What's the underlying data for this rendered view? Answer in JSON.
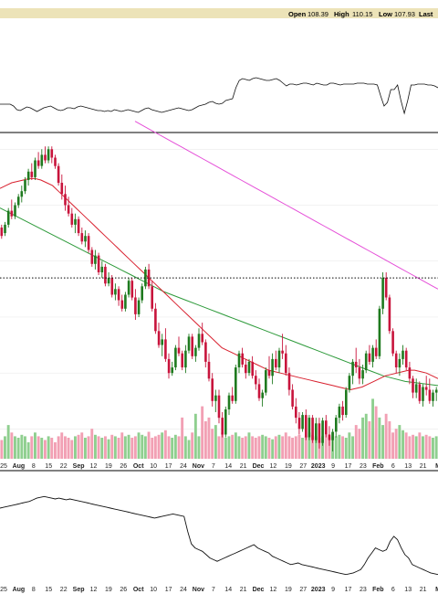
{
  "header": {
    "open_label": "Open",
    "open_value": "108.39",
    "high_label": "High",
    "high_value": "110.15",
    "low_label": "Low",
    "low_value": "107.93",
    "last_label": "Last"
  },
  "colors": {
    "up": "#1f7a1f",
    "down": "#c8143c",
    "vol_up": "#8fcf8f",
    "vol_down": "#f2a0b4",
    "ma_short": "#d8202e",
    "ma_mid": "#2d9a3a",
    "ma_long": "#e54fd8",
    "header_bg": "#ece3b8",
    "grid": "#e6e6e6"
  },
  "chart_data": [
    {
      "type": "line",
      "panel": "upper-indicator",
      "values": [
        24,
        24,
        24,
        24,
        22,
        18,
        17,
        19,
        21,
        20,
        18,
        16,
        18,
        20,
        21,
        22,
        20,
        18,
        17,
        18,
        20,
        20,
        19,
        21,
        22,
        21,
        20,
        19,
        18,
        17,
        17,
        16,
        17,
        16,
        18,
        17,
        16,
        17,
        18,
        17,
        16,
        15,
        17,
        19,
        20,
        18,
        17,
        16,
        15,
        16,
        17,
        18,
        19,
        20,
        19,
        18,
        17,
        18,
        20,
        22,
        23,
        24,
        26,
        27,
        25,
        24,
        25,
        28,
        29,
        30,
        42,
        50,
        52,
        51,
        50,
        52,
        53,
        52,
        51,
        50,
        50,
        51,
        52,
        50,
        47,
        44,
        46,
        46,
        45,
        46,
        47,
        47,
        46,
        45,
        47,
        46,
        45,
        45,
        47,
        47,
        46,
        45,
        46,
        46,
        46,
        46,
        47,
        47,
        47,
        46,
        46,
        46,
        45,
        33,
        22,
        26,
        40,
        40,
        45,
        28,
        14,
        28,
        45,
        45,
        46,
        46,
        46,
        45,
        45,
        44,
        42
      ]
    },
    {
      "type": "candlestick",
      "panel": "price",
      "ohlc": [
        [
          122,
          123,
          118,
          119
        ],
        [
          120,
          124,
          119,
          123
        ],
        [
          123,
          129,
          122,
          128
        ],
        [
          128,
          132,
          125,
          126
        ],
        [
          126,
          131,
          125,
          130
        ],
        [
          130,
          134,
          129,
          133
        ],
        [
          133,
          137,
          131,
          135
        ],
        [
          135,
          140,
          134,
          139
        ],
        [
          139,
          143,
          137,
          142
        ],
        [
          142,
          145,
          139,
          140
        ],
        [
          140,
          147,
          139,
          146
        ],
        [
          146,
          149,
          143,
          144
        ],
        [
          144,
          150,
          143,
          148
        ],
        [
          148,
          151,
          145,
          146
        ],
        [
          146,
          151,
          145,
          150
        ],
        [
          150,
          151,
          145,
          147
        ],
        [
          147,
          148,
          143,
          144
        ],
        [
          144,
          145,
          137,
          138
        ],
        [
          138,
          141,
          132,
          134
        ],
        [
          134,
          137,
          128,
          130
        ],
        [
          130,
          133,
          126,
          127
        ],
        [
          127,
          129,
          122,
          123
        ],
        [
          123,
          127,
          120,
          125
        ],
        [
          125,
          126,
          119,
          120
        ],
        [
          120,
          122,
          116,
          117
        ],
        [
          117,
          121,
          115,
          119
        ],
        [
          119,
          120,
          113,
          114
        ],
        [
          114,
          115,
          108,
          109
        ],
        [
          109,
          114,
          107,
          112
        ],
        [
          112,
          113,
          105,
          106
        ],
        [
          106,
          110,
          104,
          108
        ],
        [
          108,
          109,
          101,
          102
        ],
        [
          102,
          106,
          101,
          104
        ],
        [
          104,
          105,
          97,
          98
        ],
        [
          98,
          102,
          96,
          100
        ],
        [
          100,
          101,
          94,
          96
        ],
        [
          96,
          98,
          92,
          93
        ],
        [
          93,
          99,
          92,
          98
        ],
        [
          98,
          104,
          97,
          103
        ],
        [
          103,
          104,
          96,
          97
        ],
        [
          97,
          100,
          89,
          91
        ],
        [
          91,
          97,
          90,
          96
        ],
        [
          96,
          102,
          95,
          101
        ],
        [
          101,
          108,
          100,
          107
        ],
        [
          107,
          109,
          100,
          101
        ],
        [
          101,
          103,
          92,
          93
        ],
        [
          93,
          95,
          84,
          85
        ],
        [
          85,
          88,
          79,
          80
        ],
        [
          80,
          84,
          76,
          82
        ],
        [
          82,
          86,
          74,
          75
        ],
        [
          75,
          77,
          68,
          70
        ],
        [
          70,
          74,
          69,
          72
        ],
        [
          72,
          80,
          71,
          79
        ],
        [
          79,
          83,
          76,
          77
        ],
        [
          77,
          78,
          71,
          72
        ],
        [
          72,
          80,
          70,
          78
        ],
        [
          78,
          84,
          77,
          83
        ],
        [
          83,
          84,
          75,
          76
        ],
        [
          76,
          80,
          74,
          79
        ],
        [
          79,
          86,
          78,
          84
        ],
        [
          84,
          88,
          80,
          81
        ],
        [
          81,
          82,
          72,
          74
        ],
        [
          74,
          77,
          67,
          68
        ],
        [
          68,
          70,
          58,
          60
        ],
        [
          60,
          64,
          56,
          62
        ],
        [
          62,
          64,
          52,
          54
        ],
        [
          54,
          56,
          47,
          48
        ],
        [
          48,
          58,
          47,
          57
        ],
        [
          57,
          63,
          55,
          62
        ],
        [
          62,
          65,
          59,
          60
        ],
        [
          60,
          73,
          59,
          72
        ],
        [
          72,
          78,
          70,
          77
        ],
        [
          77,
          79,
          72,
          73
        ],
        [
          73,
          75,
          68,
          70
        ],
        [
          70,
          75,
          69,
          74
        ],
        [
          74,
          76,
          68,
          69
        ],
        [
          69,
          71,
          64,
          66
        ],
        [
          66,
          68,
          60,
          61
        ],
        [
          61,
          64,
          58,
          63
        ],
        [
          63,
          72,
          62,
          71
        ],
        [
          71,
          76,
          68,
          69
        ],
        [
          69,
          77,
          66,
          75
        ],
        [
          75,
          78,
          71,
          72
        ],
        [
          72,
          79,
          70,
          78
        ],
        [
          78,
          84,
          75,
          77
        ],
        [
          77,
          80,
          69,
          70
        ],
        [
          70,
          72,
          62,
          64
        ],
        [
          64,
          66,
          57,
          58
        ],
        [
          58,
          61,
          52,
          54
        ],
        [
          54,
          56,
          48,
          50
        ],
        [
          50,
          56,
          49,
          55
        ],
        [
          55,
          57,
          46,
          47
        ],
        [
          47,
          55,
          46,
          54
        ],
        [
          54,
          55,
          45,
          46
        ],
        [
          46,
          54,
          45,
          52
        ],
        [
          52,
          54,
          43,
          45
        ],
        [
          45,
          54,
          44,
          53
        ],
        [
          53,
          55,
          47,
          48
        ],
        [
          48,
          51,
          44,
          46
        ],
        [
          46,
          50,
          42,
          49
        ],
        [
          49,
          55,
          47,
          54
        ],
        [
          54,
          59,
          52,
          58
        ],
        [
          58,
          60,
          53,
          55
        ],
        [
          55,
          65,
          54,
          64
        ],
        [
          64,
          70,
          63,
          69
        ],
        [
          69,
          75,
          66,
          74
        ],
        [
          74,
          79,
          70,
          72
        ],
        [
          72,
          75,
          66,
          68
        ],
        [
          68,
          73,
          66,
          71
        ],
        [
          71,
          78,
          70,
          77
        ],
        [
          77,
          80,
          73,
          74
        ],
        [
          74,
          80,
          72,
          79
        ],
        [
          79,
          82,
          75,
          76
        ],
        [
          76,
          94,
          75,
          93
        ],
        [
          93,
          106,
          91,
          104
        ],
        [
          104,
          106,
          96,
          97
        ],
        [
          97,
          98,
          84,
          85
        ],
        [
          85,
          86,
          76,
          77
        ],
        [
          77,
          78,
          70,
          72
        ],
        [
          72,
          77,
          69,
          75
        ],
        [
          75,
          80,
          73,
          78
        ],
        [
          78,
          79,
          71,
          72
        ],
        [
          72,
          74,
          66,
          68
        ],
        [
          68,
          69,
          61,
          63
        ],
        [
          63,
          68,
          61,
          66
        ],
        [
          66,
          67,
          59,
          60
        ],
        [
          60,
          66,
          58,
          65
        ],
        [
          65,
          69,
          62,
          64
        ],
        [
          64,
          68,
          59,
          60
        ],
        [
          60,
          64,
          58,
          63
        ],
        [
          63,
          65,
          60,
          64
        ]
      ],
      "ma_short": [
        136,
        137,
        138,
        138.5,
        139,
        139.5,
        139.5,
        139,
        138,
        137,
        135,
        133,
        131,
        129,
        127,
        125,
        123,
        121,
        119,
        117,
        115,
        113,
        111,
        109,
        107,
        105,
        103,
        101,
        99,
        97,
        95,
        93,
        91,
        89,
        87,
        85,
        83,
        81,
        79,
        78,
        77,
        76,
        75,
        74,
        73,
        72,
        71,
        70.5,
        70,
        69.5,
        69,
        68.5,
        68,
        67.5,
        67,
        66.5,
        66,
        65.5,
        65,
        64.5,
        64,
        64.5,
        65,
        66,
        67,
        68,
        69,
        69.5,
        70,
        70.5,
        71,
        71,
        70.5,
        70,
        69,
        68
      ],
      "ma_mid": [
        129,
        127,
        125,
        123,
        121,
        119,
        117,
        115,
        113,
        111,
        109,
        107,
        105,
        103,
        101,
        99,
        97.5,
        96,
        94.5,
        93,
        91.5,
        90,
        88.5,
        87,
        85.5,
        84,
        82.5,
        81,
        79.5,
        78,
        76.5,
        75,
        73.5,
        72,
        70.5,
        69,
        68,
        67,
        66.5,
        66,
        65.5
      ],
      "ma_long": [
        160,
        158.5,
        157,
        155.5,
        154,
        152.5,
        151,
        149.5,
        148,
        146.5,
        145,
        143.5,
        142,
        140.5,
        139,
        137.5,
        136,
        134.5,
        133,
        131.5,
        130,
        128.5,
        127,
        125.5,
        124,
        122.5,
        121,
        119.5,
        118,
        116.5,
        115,
        113.5,
        112,
        110.5,
        109,
        107.5,
        106,
        104.5,
        103,
        101.5,
        100
      ],
      "reference_line": 104,
      "volume": [
        0.25,
        0.3,
        0.45,
        0.35,
        0.3,
        0.28,
        0.32,
        0.3,
        0.22,
        0.3,
        0.35,
        0.3,
        0.28,
        0.25,
        0.3,
        0.28,
        0.22,
        0.3,
        0.35,
        0.3,
        0.28,
        0.25,
        0.3,
        0.32,
        0.35,
        0.28,
        0.3,
        0.4,
        0.32,
        0.3,
        0.28,
        0.3,
        0.26,
        0.32,
        0.3,
        0.28,
        0.35,
        0.3,
        0.32,
        0.28,
        0.3,
        0.35,
        0.32,
        0.3,
        0.36,
        0.28,
        0.3,
        0.32,
        0.35,
        0.38,
        0.3,
        0.28,
        0.32,
        0.3,
        0.55,
        0.3,
        0.25,
        0.35,
        0.6,
        0.3,
        0.7,
        0.5,
        0.55,
        0.4,
        0.45,
        0.3,
        0.35,
        0.28,
        0.3,
        0.32,
        0.35,
        0.3,
        0.28,
        0.3,
        0.35,
        0.3,
        0.28,
        0.3,
        0.32,
        0.3,
        0.28,
        0.26,
        0.3,
        0.32,
        0.3,
        0.35,
        0.3,
        0.28,
        0.3,
        0.32,
        0.28,
        0.3,
        0.35,
        0.32,
        0.3,
        0.28,
        0.3,
        0.32,
        0.3,
        0.35,
        0.3,
        0.32,
        0.3,
        0.28,
        0.35,
        0.3,
        0.45,
        0.4,
        0.55,
        0.6,
        0.5,
        0.8,
        0.7,
        0.55,
        0.45,
        0.6,
        0.5,
        0.35,
        0.4,
        0.45,
        0.38,
        0.35,
        0.3,
        0.32,
        0.3,
        0.35,
        0.3,
        0.32,
        0.3,
        0.28,
        0.3
      ]
    },
    {
      "type": "line",
      "panel": "lower-indicator",
      "values": [
        88,
        89,
        90,
        91,
        92,
        93,
        94,
        95,
        96,
        98,
        100,
        101,
        102,
        101,
        100,
        99,
        100,
        99,
        98,
        99,
        98,
        97,
        96,
        95,
        94,
        93,
        92,
        91,
        90,
        89,
        88,
        87,
        86,
        85,
        84,
        83,
        82,
        81,
        80,
        79,
        78,
        77,
        76,
        77,
        78,
        79,
        80,
        81,
        80,
        79,
        78,
        60,
        45,
        40,
        38,
        36,
        32,
        28,
        26,
        24,
        26,
        28,
        30,
        32,
        34,
        36,
        38,
        40,
        42,
        44,
        40,
        38,
        36,
        34,
        30,
        28,
        26,
        24,
        22,
        20,
        21,
        22,
        20,
        19,
        18,
        17,
        16,
        15,
        14,
        13,
        12,
        11,
        10,
        9,
        8,
        9,
        10,
        12,
        14,
        20,
        28,
        34,
        40,
        38,
        36,
        38,
        48,
        54,
        50,
        40,
        32,
        28,
        20,
        18,
        16,
        14,
        12,
        10,
        9,
        8
      ]
    }
  ],
  "axes": {
    "x_ticks": [
      {
        "label": "25",
        "bold": false
      },
      {
        "label": "Aug",
        "bold": true
      },
      {
        "label": "8",
        "bold": false
      },
      {
        "label": "15",
        "bold": false
      },
      {
        "label": "22",
        "bold": false
      },
      {
        "label": "Sep",
        "bold": true
      },
      {
        "label": "12",
        "bold": false
      },
      {
        "label": "19",
        "bold": false
      },
      {
        "label": "26",
        "bold": false
      },
      {
        "label": "Oct",
        "bold": true
      },
      {
        "label": "10",
        "bold": false
      },
      {
        "label": "17",
        "bold": false
      },
      {
        "label": "24",
        "bold": false
      },
      {
        "label": "Nov",
        "bold": true
      },
      {
        "label": "7",
        "bold": false
      },
      {
        "label": "14",
        "bold": false
      },
      {
        "label": "21",
        "bold": false
      },
      {
        "label": "Dec",
        "bold": true
      },
      {
        "label": "12",
        "bold": false
      },
      {
        "label": "19",
        "bold": false
      },
      {
        "label": "27",
        "bold": false
      },
      {
        "label": "2023",
        "bold": true
      },
      {
        "label": "9",
        "bold": false
      },
      {
        "label": "17",
        "bold": false
      },
      {
        "label": "23",
        "bold": false
      },
      {
        "label": "Feb",
        "bold": true
      },
      {
        "label": "6",
        "bold": false
      },
      {
        "label": "13",
        "bold": false
      },
      {
        "label": "21",
        "bold": false
      },
      {
        "label": "M",
        "bold": true
      }
    ]
  }
}
